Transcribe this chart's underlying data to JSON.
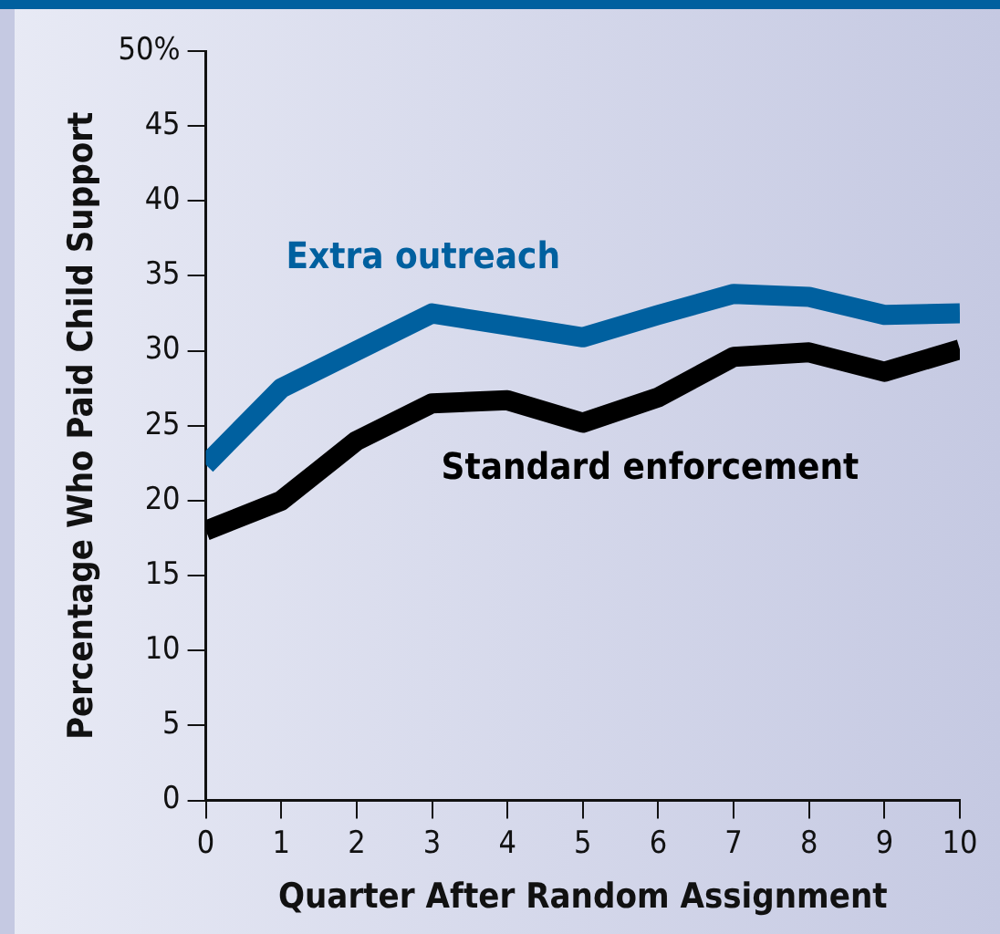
{
  "chart_data": {
    "type": "line",
    "xlabel": "Quarter After Random Assignment",
    "ylabel": "Percentage Who Paid Child Support",
    "x": [
      0,
      1,
      2,
      3,
      4,
      5,
      6,
      7,
      8,
      9,
      10
    ],
    "series": [
      {
        "name": "Extra outreach",
        "color": "#00609f",
        "values": [
          22.4,
          27.5,
          30,
          32.5,
          31.7,
          30.9,
          32.4,
          33.8,
          33.6,
          32.4,
          32.5
        ]
      },
      {
        "name": "Standard enforcement",
        "color": "#000000",
        "values": [
          18,
          20,
          24,
          26.5,
          26.7,
          25.2,
          26.9,
          29.6,
          29.9,
          28.6,
          30.1
        ]
      }
    ],
    "xlim": [
      0,
      10
    ],
    "xticks": [
      0,
      1,
      2,
      3,
      4,
      5,
      6,
      7,
      8,
      9,
      10
    ],
    "ylim": [
      0,
      50
    ],
    "yticks": [
      0,
      5,
      10,
      15,
      20,
      25,
      30,
      35,
      40,
      45,
      {
        "value": 50,
        "label": "50%"
      }
    ],
    "grid": false,
    "legend": false,
    "marker": "none",
    "line_style": "solid"
  }
}
